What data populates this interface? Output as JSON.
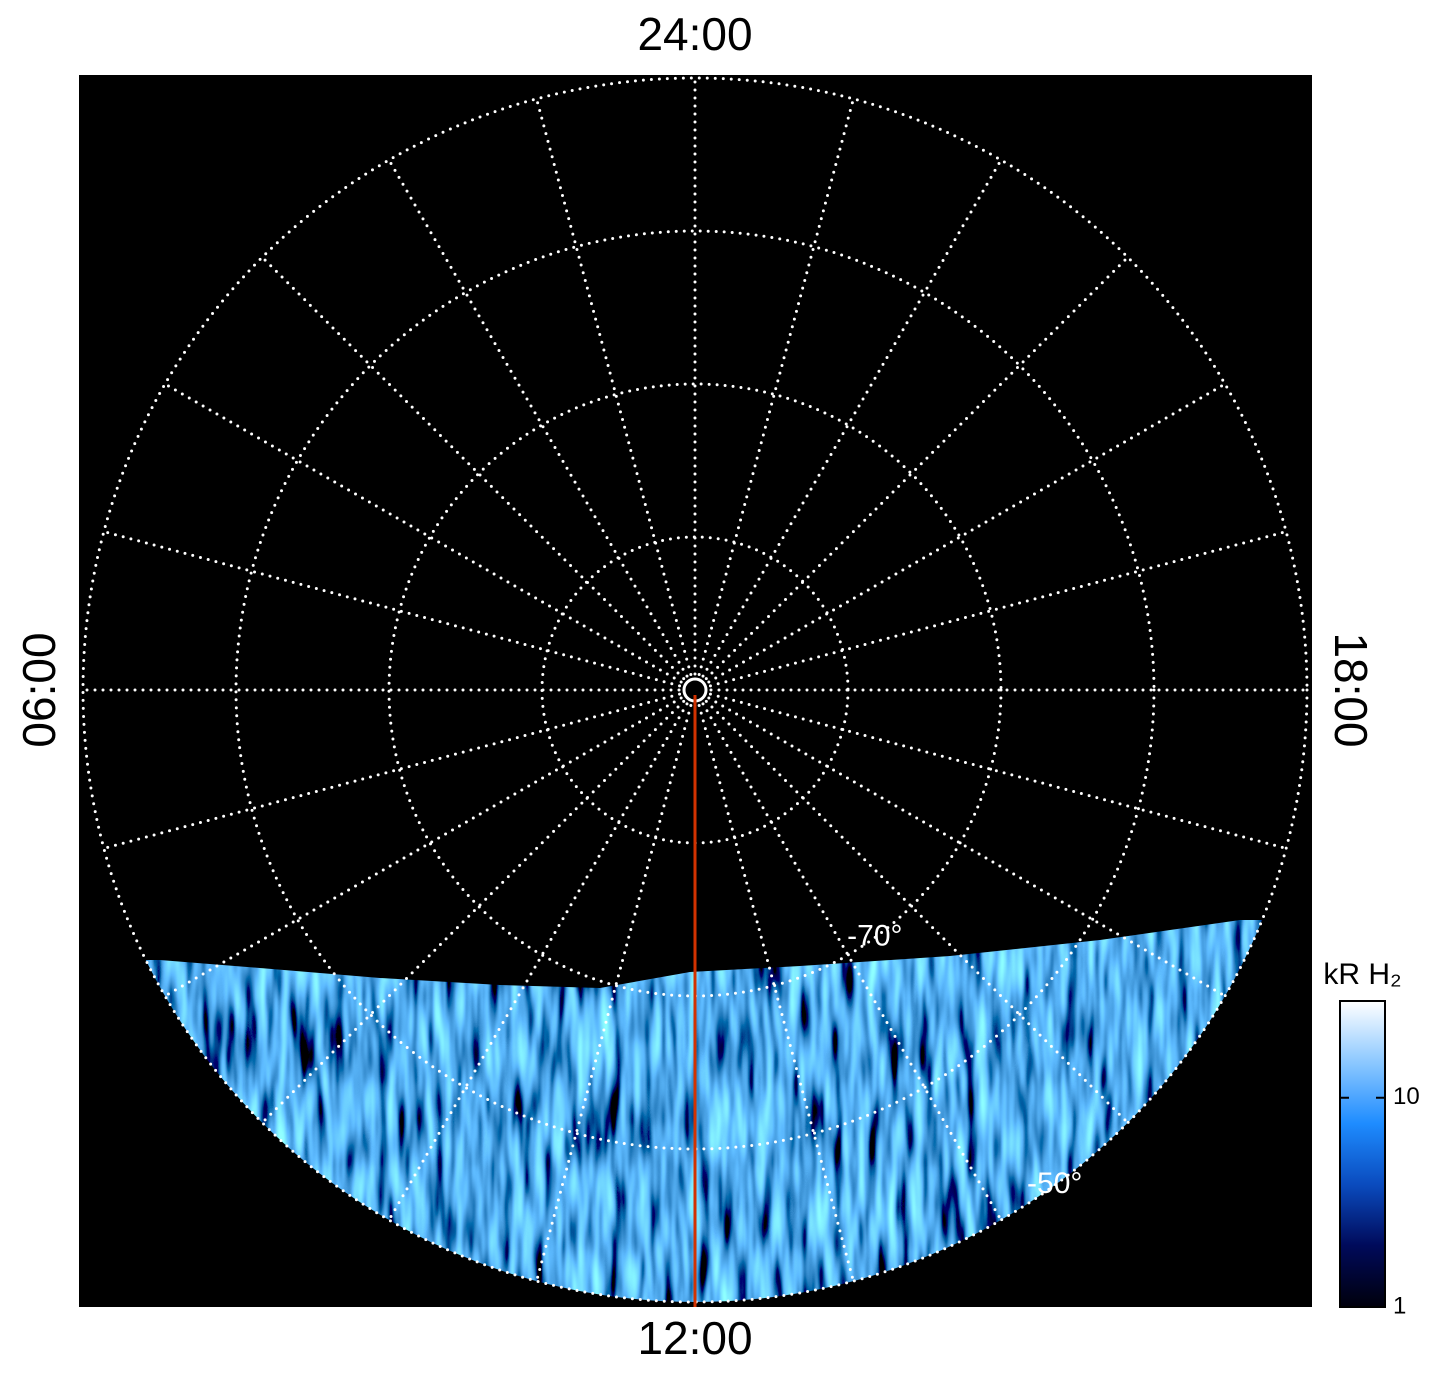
{
  "chart_data": {
    "type": "polar",
    "rlim": [
      -90,
      -50
    ],
    "rgrid": [
      -80,
      -70,
      -60,
      -50
    ],
    "rticks": [
      {
        "value": -70,
        "label": "-70°"
      },
      {
        "value": -50,
        "label": "-50°"
      }
    ],
    "thetalim": [
      0,
      24
    ],
    "theta_grid": [
      0,
      1,
      2,
      3,
      4,
      5,
      6,
      7,
      8,
      9,
      10,
      11,
      12,
      13,
      14,
      15,
      16,
      17,
      18,
      19,
      20,
      21,
      22,
      23
    ],
    "theta_ticks": [
      {
        "value": 0,
        "label": "24:00"
      },
      {
        "value": 6,
        "label": "06:00"
      },
      {
        "value": 12,
        "label": "12:00"
      },
      {
        "value": 18,
        "label": "18:00"
      }
    ],
    "colorbar": {
      "title": "kR H₂",
      "log": true,
      "clim": [
        1,
        29
      ],
      "ticks": [
        1,
        10
      ],
      "colormap": [
        "#00000c",
        "#000a5a",
        "#0a4bbe",
        "#1e8cff",
        "#8cc8ff",
        "#ffffff"
      ]
    }
  }
}
